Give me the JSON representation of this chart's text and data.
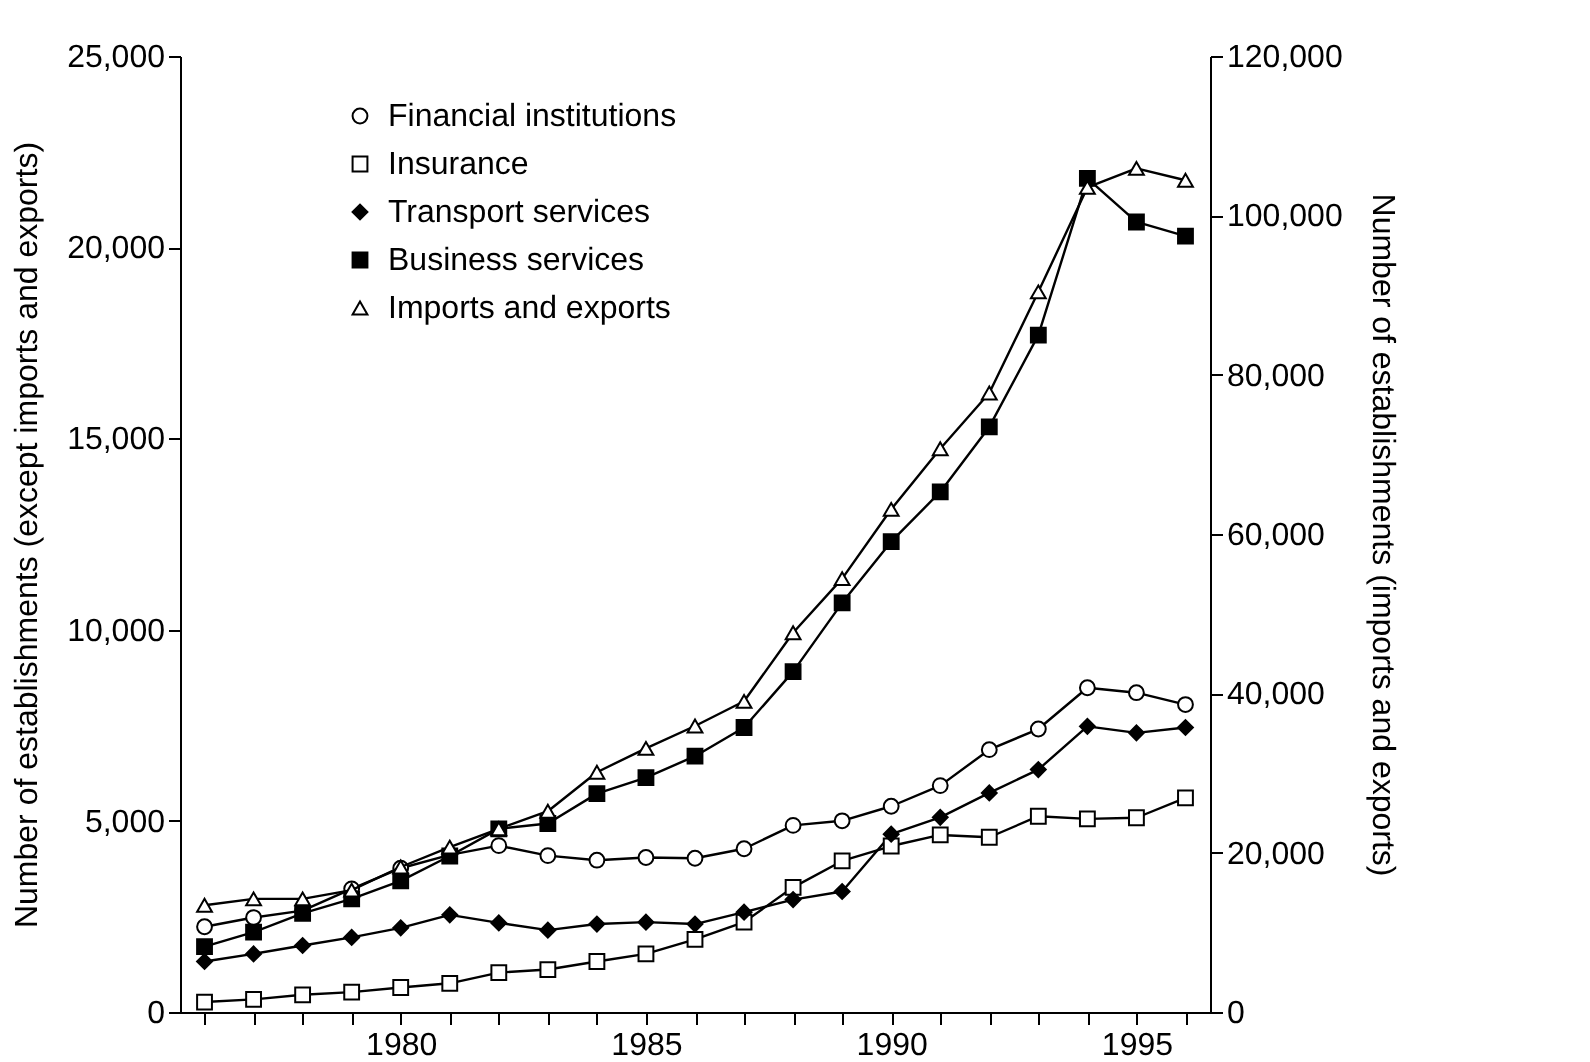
{
  "chart_data": {
    "type": "line",
    "ylabel": "Number of establishments (except imports and exports)",
    "y2label": "Number of establishments (imports and exports)",
    "x": [
      1976,
      1977,
      1978,
      1979,
      1980,
      1981,
      1982,
      1983,
      1984,
      1985,
      1986,
      1987,
      1988,
      1989,
      1990,
      1991,
      1992,
      1993,
      1994,
      1995,
      1996
    ],
    "xlim": [
      1975.5,
      1996.5
    ],
    "xticks": [
      {
        "value": 1976,
        "label": null
      },
      {
        "value": 1977,
        "label": null
      },
      {
        "value": 1978,
        "label": null
      },
      {
        "value": 1979,
        "label": null
      },
      1980,
      {
        "value": 1981,
        "label": null
      },
      {
        "value": 1982,
        "label": null
      },
      {
        "value": 1983,
        "label": null
      },
      {
        "value": 1984,
        "label": null
      },
      1985,
      {
        "value": 1986,
        "label": null
      },
      {
        "value": 1987,
        "label": null
      },
      {
        "value": 1988,
        "label": null
      },
      {
        "value": 1989,
        "label": null
      },
      1990,
      {
        "value": 1991,
        "label": null
      },
      {
        "value": 1992,
        "label": null
      },
      {
        "value": 1993,
        "label": null
      },
      {
        "value": 1994,
        "label": null
      },
      1995,
      {
        "value": 1996,
        "label": null
      }
    ],
    "ylim": [
      0,
      25000
    ],
    "yticks": [
      0,
      {
        "value": 5000,
        "label": "5,000"
      },
      {
        "value": 10000,
        "label": "10,000"
      },
      {
        "value": 15000,
        "label": "15,000"
      },
      {
        "value": 20000,
        "label": "20,000"
      },
      {
        "value": 25000,
        "label": "25,000"
      }
    ],
    "y2lim": [
      0,
      120000
    ],
    "y2ticks": [
      0,
      {
        "value": 20000,
        "label": "20,000"
      },
      {
        "value": 40000,
        "label": "40,000"
      },
      {
        "value": 60000,
        "label": "60,000"
      },
      {
        "value": 80000,
        "label": "80,000"
      },
      {
        "value": 100000,
        "label": "100,000"
      },
      {
        "value": 120000,
        "label": "120,000"
      }
    ],
    "legend": "top left",
    "series": [
      {
        "name": "Financial institutions",
        "color": "#000000",
        "marker": "circle",
        "values": [
          2230,
          2470,
          2650,
          3220,
          3760,
          4110,
          4350,
          4090,
          3970,
          4040,
          4020,
          4270,
          4880,
          5000,
          5380,
          5920,
          6860,
          7400,
          8480,
          8350,
          8040
        ]
      },
      {
        "name": "Insurance",
        "color": "#000000",
        "marker": "square",
        "values": [
          260,
          330,
          450,
          520,
          640,
          750,
          1030,
          1110,
          1320,
          1520,
          1900,
          2350,
          3260,
          3950,
          4340,
          4630,
          4570,
          5120,
          5050,
          5080,
          5600
        ]
      },
      {
        "name": "Transport services",
        "color": "#000000",
        "marker": "diamond",
        "values": [
          1320,
          1520,
          1740,
          1950,
          2200,
          2540,
          2330,
          2140,
          2300,
          2350,
          2300,
          2610,
          2940,
          3150,
          4650,
          5090,
          5730,
          6340,
          7470,
          7300,
          7440
        ]
      },
      {
        "name": "Business services",
        "color": "#000000",
        "marker": "square",
        "values": [
          1710,
          2090,
          2580,
          2960,
          3430,
          4080,
          4790,
          4930,
          5710,
          6130,
          6690,
          7440,
          8900,
          10700,
          12300,
          13600,
          15300,
          17700,
          21800,
          20660,
          20290
        ]
      },
      {
        "name": "Imports and exports",
        "color": "#000000",
        "marker": "triangle",
        "axis": "y2",
        "values": [
          13400,
          14200,
          14200,
          15300,
          18200,
          20700,
          23000,
          25200,
          30100,
          33100,
          35900,
          39000,
          47600,
          54400,
          63100,
          70700,
          77700,
          90400,
          103500,
          105900,
          104400
        ]
      }
    ]
  }
}
